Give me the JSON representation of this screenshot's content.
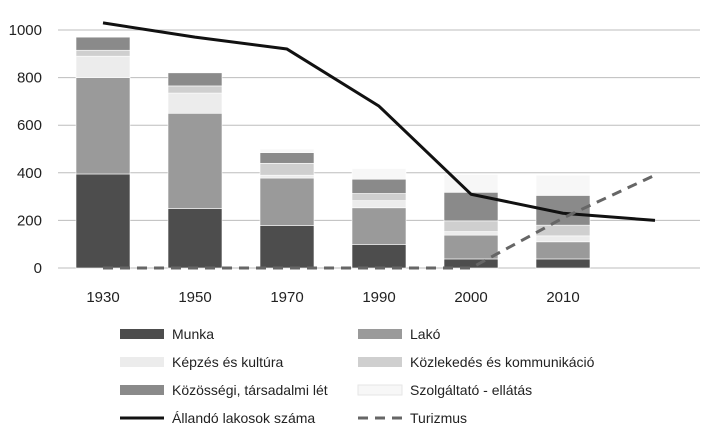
{
  "chart_data": {
    "type": "bar",
    "stacked": true,
    "title": "",
    "xlabel": "",
    "ylabel": "",
    "categories": [
      "1930",
      "1950",
      "1970",
      "1990",
      "2000",
      "2010"
    ],
    "ylim": [
      0,
      1000
    ],
    "yticks": [
      "0",
      "200",
      "400",
      "600",
      "800",
      "1000"
    ],
    "grid": true,
    "legend_position": "bottom",
    "series": [
      {
        "name": "Munka",
        "kind": "bar",
        "color": "#4d4d4d",
        "values": [
          395,
          250,
          178,
          98,
          38,
          38
        ]
      },
      {
        "name": "Lakó",
        "kind": "bar",
        "color": "#9a9a9a",
        "values": [
          405,
          400,
          200,
          155,
          100,
          72
        ]
      },
      {
        "name": "Képzés és kultúra",
        "kind": "bar",
        "color": "#ececec",
        "values": [
          90,
          85,
          12,
          30,
          15,
          25
        ]
      },
      {
        "name": "Közlekedés és kommunikáció",
        "kind": "bar",
        "color": "#cfcfcf",
        "values": [
          25,
          30,
          50,
          30,
          45,
          45
        ]
      },
      {
        "name": "Közösségi, társadalmi lét",
        "kind": "bar",
        "color": "#8a8a8a",
        "values": [
          55,
          55,
          45,
          60,
          120,
          125
        ]
      },
      {
        "name": "Szolgáltató - ellátás",
        "kind": "bar",
        "color": "#f7f7f7",
        "values": [
          0,
          0,
          15,
          45,
          75,
          85
        ]
      },
      {
        "name": "Állandó lakosok száma",
        "kind": "line",
        "color": "#111111",
        "dash": false,
        "x": [
          0,
          1,
          2,
          3,
          4,
          5,
          6
        ],
        "values": [
          1030,
          970,
          920,
          680,
          310,
          230,
          200
        ]
      },
      {
        "name": "Turizmus",
        "kind": "line",
        "color": "#666666",
        "dash": true,
        "x": [
          0,
          1,
          2,
          3,
          4,
          5,
          6
        ],
        "values": [
          0,
          0,
          0,
          0,
          0,
          210,
          390
        ]
      }
    ]
  }
}
